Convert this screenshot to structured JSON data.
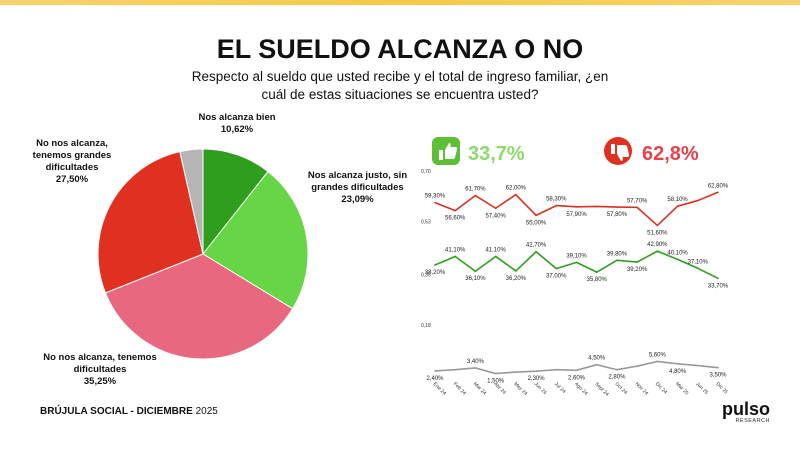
{
  "header": {
    "title": "EL SUELDO ALCANZA O NO",
    "subtitle": "Respecto al sueldo que usted recibe y el total de ingreso familiar, ¿en cuál de estas situaciones se encuentra usted?"
  },
  "kpis": [
    "33,7%",
    "62,8%"
  ],
  "chart_data": [
    {
      "type": "pie",
      "categories": [
        "Nos alcanza bien",
        "Nos alcanza justo, sin grandes dificultades",
        "No nos alcanza, tenemos dificultades",
        "No nos alcanza, tenemos grandes dificultades",
        null
      ],
      "values": [
        10.62,
        23.09,
        35.25,
        27.5,
        3.54
      ],
      "value_labels": [
        "10,62%",
        "23,09%",
        "35,25%",
        "27,50%",
        null
      ],
      "colors": [
        "#2f9e1f",
        "#67d646",
        "#e8687f",
        "#e0301f",
        "#b5b5b5"
      ]
    },
    {
      "type": "line",
      "categories": [
        "Ene 24",
        "Feb 24",
        "Mar 24",
        "Abr 24",
        "May 24",
        "Jun 24",
        "Jul 24",
        "Ago 24",
        "Sept 24",
        "Oct 24",
        "Nov 24",
        "Dic 24",
        "Mar 25",
        "Jun 25",
        "Dic 25"
      ],
      "series": [
        {
          "color": "#d9311f",
          "values": [
            0.593,
            0.566,
            0.617,
            0.574,
            0.62,
            0.55,
            0.583,
            0.579,
            0.58,
            0.578,
            0.577,
            0.516,
            0.581,
            0.6,
            0.628
          ],
          "value_labels": [
            "59,30%",
            "56,60%",
            "61,70%",
            "57,40%",
            "62,00%",
            "55,00%",
            "58,30%",
            "57,90%",
            null,
            "57,80%",
            "57,70%",
            "51,60%",
            "58,10%",
            null,
            "62,80%"
          ]
        },
        {
          "color": "#2f9e1f",
          "values": [
            0.382,
            0.411,
            0.361,
            0.411,
            0.362,
            0.427,
            0.37,
            0.391,
            0.358,
            0.398,
            0.392,
            0.429,
            0.401,
            0.371,
            0.337
          ],
          "value_labels": [
            "38,20%",
            "41,10%",
            "36,10%",
            "41,10%",
            "36,20%",
            "42,70%",
            "37,00%",
            "39,10%",
            "35,80%",
            "39,80%",
            "39,20%",
            "42,90%",
            "40,10%",
            "37,10%",
            "33,70%"
          ]
        },
        {
          "color": "#9a9a9a",
          "values": [
            0.024,
            0.028,
            0.034,
            0.015,
            0.02,
            0.023,
            0.028,
            0.026,
            0.045,
            0.028,
            0.04,
            0.056,
            0.048,
            0.042,
            0.035
          ],
          "value_labels": [
            "2,40%",
            null,
            "3,40%",
            "1,50%",
            null,
            "2,30%",
            null,
            "2,60%",
            "4,50%",
            "2,80%",
            null,
            "5,60%",
            "4,80%",
            null,
            "3,50%"
          ]
        }
      ],
      "ylim": [
        0,
        0.7
      ],
      "yticks": [
        {
          "value": 0.7,
          "label": "0,70"
        },
        {
          "value": 0.53,
          "label": "0,53"
        },
        {
          "value": 0.35,
          "label": "0,35"
        },
        {
          "value": 0.18,
          "label": "0,18"
        }
      ]
    }
  ],
  "footer": {
    "source": "BRÚJULA SOCIAL - DICIEMBRE",
    "year": "2025",
    "logo": "pulso",
    "logo_sub": "RESEARCH"
  }
}
